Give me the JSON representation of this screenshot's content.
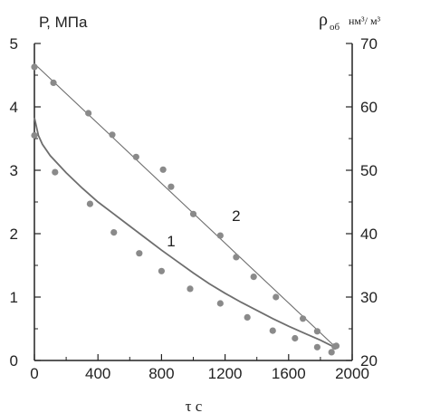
{
  "chart_data": {
    "type": "scatter",
    "title": "",
    "xlabel": "τ c",
    "ylabel_left": "Р, МПа",
    "ylabel_right": {
      "symbol": "ρ",
      "subscript": "об",
      "unit_text": "нм³/ м³"
    },
    "xlim": [
      0,
      2000
    ],
    "ylim_left": [
      0,
      5
    ],
    "ylim_right": [
      20,
      70
    ],
    "x_ticks": [
      "0",
      "400",
      "800",
      "1200",
      "1600",
      "2000"
    ],
    "y_left_ticks": [
      "0",
      "1",
      "2",
      "3",
      "4",
      "5"
    ],
    "y_right_ticks": [
      "20",
      "30",
      "40",
      "50",
      "60",
      "70"
    ],
    "grid": false,
    "series": [
      {
        "name": "1",
        "axis": "left",
        "points": [
          [
            0,
            3.55
          ],
          [
            130,
            2.97
          ],
          [
            350,
            2.47
          ],
          [
            500,
            2.02
          ],
          [
            660,
            1.69
          ],
          [
            800,
            1.41
          ],
          [
            980,
            1.13
          ],
          [
            1170,
            0.9
          ],
          [
            1340,
            0.68
          ],
          [
            1500,
            0.47
          ],
          [
            1640,
            0.35
          ],
          [
            1780,
            0.21
          ],
          [
            1870,
            0.13
          ],
          [
            1890,
            0.22
          ]
        ],
        "fit": [
          [
            0,
            3.83
          ],
          [
            25,
            3.55
          ],
          [
            50,
            3.41
          ],
          [
            100,
            3.23
          ],
          [
            200,
            2.96
          ],
          [
            300,
            2.72
          ],
          [
            400,
            2.5
          ],
          [
            500,
            2.31
          ],
          [
            600,
            2.12
          ],
          [
            700,
            1.93
          ],
          [
            800,
            1.74
          ],
          [
            900,
            1.56
          ],
          [
            1000,
            1.38
          ],
          [
            1100,
            1.21
          ],
          [
            1200,
            1.06
          ],
          [
            1300,
            0.92
          ],
          [
            1400,
            0.79
          ],
          [
            1500,
            0.66
          ],
          [
            1600,
            0.54
          ],
          [
            1700,
            0.43
          ],
          [
            1800,
            0.32
          ],
          [
            1880,
            0.22
          ]
        ]
      },
      {
        "name": "2",
        "axis": "right",
        "points": [
          [
            0,
            66.3
          ],
          [
            120,
            63.8
          ],
          [
            340,
            59.0
          ],
          [
            490,
            55.6
          ],
          [
            640,
            52.1
          ],
          [
            810,
            50.1
          ],
          [
            860,
            47.4
          ],
          [
            1000,
            43.1
          ],
          [
            1170,
            39.7
          ],
          [
            1270,
            36.3
          ],
          [
            1380,
            33.2
          ],
          [
            1520,
            30.0
          ],
          [
            1690,
            26.6
          ],
          [
            1780,
            24.6
          ],
          [
            1900,
            22.3
          ]
        ],
        "fit": [
          [
            0,
            66.8
          ],
          [
            1900,
            22.0
          ]
        ]
      }
    ],
    "annotations": [
      {
        "text": "1",
        "x": 860,
        "y_left": 1.9
      },
      {
        "text": "2",
        "x": 1270,
        "y_left": 2.3
      }
    ],
    "colors": {
      "marker": "#8a8a8a",
      "line": "#6e6e6e",
      "axis": "#222222"
    }
  }
}
